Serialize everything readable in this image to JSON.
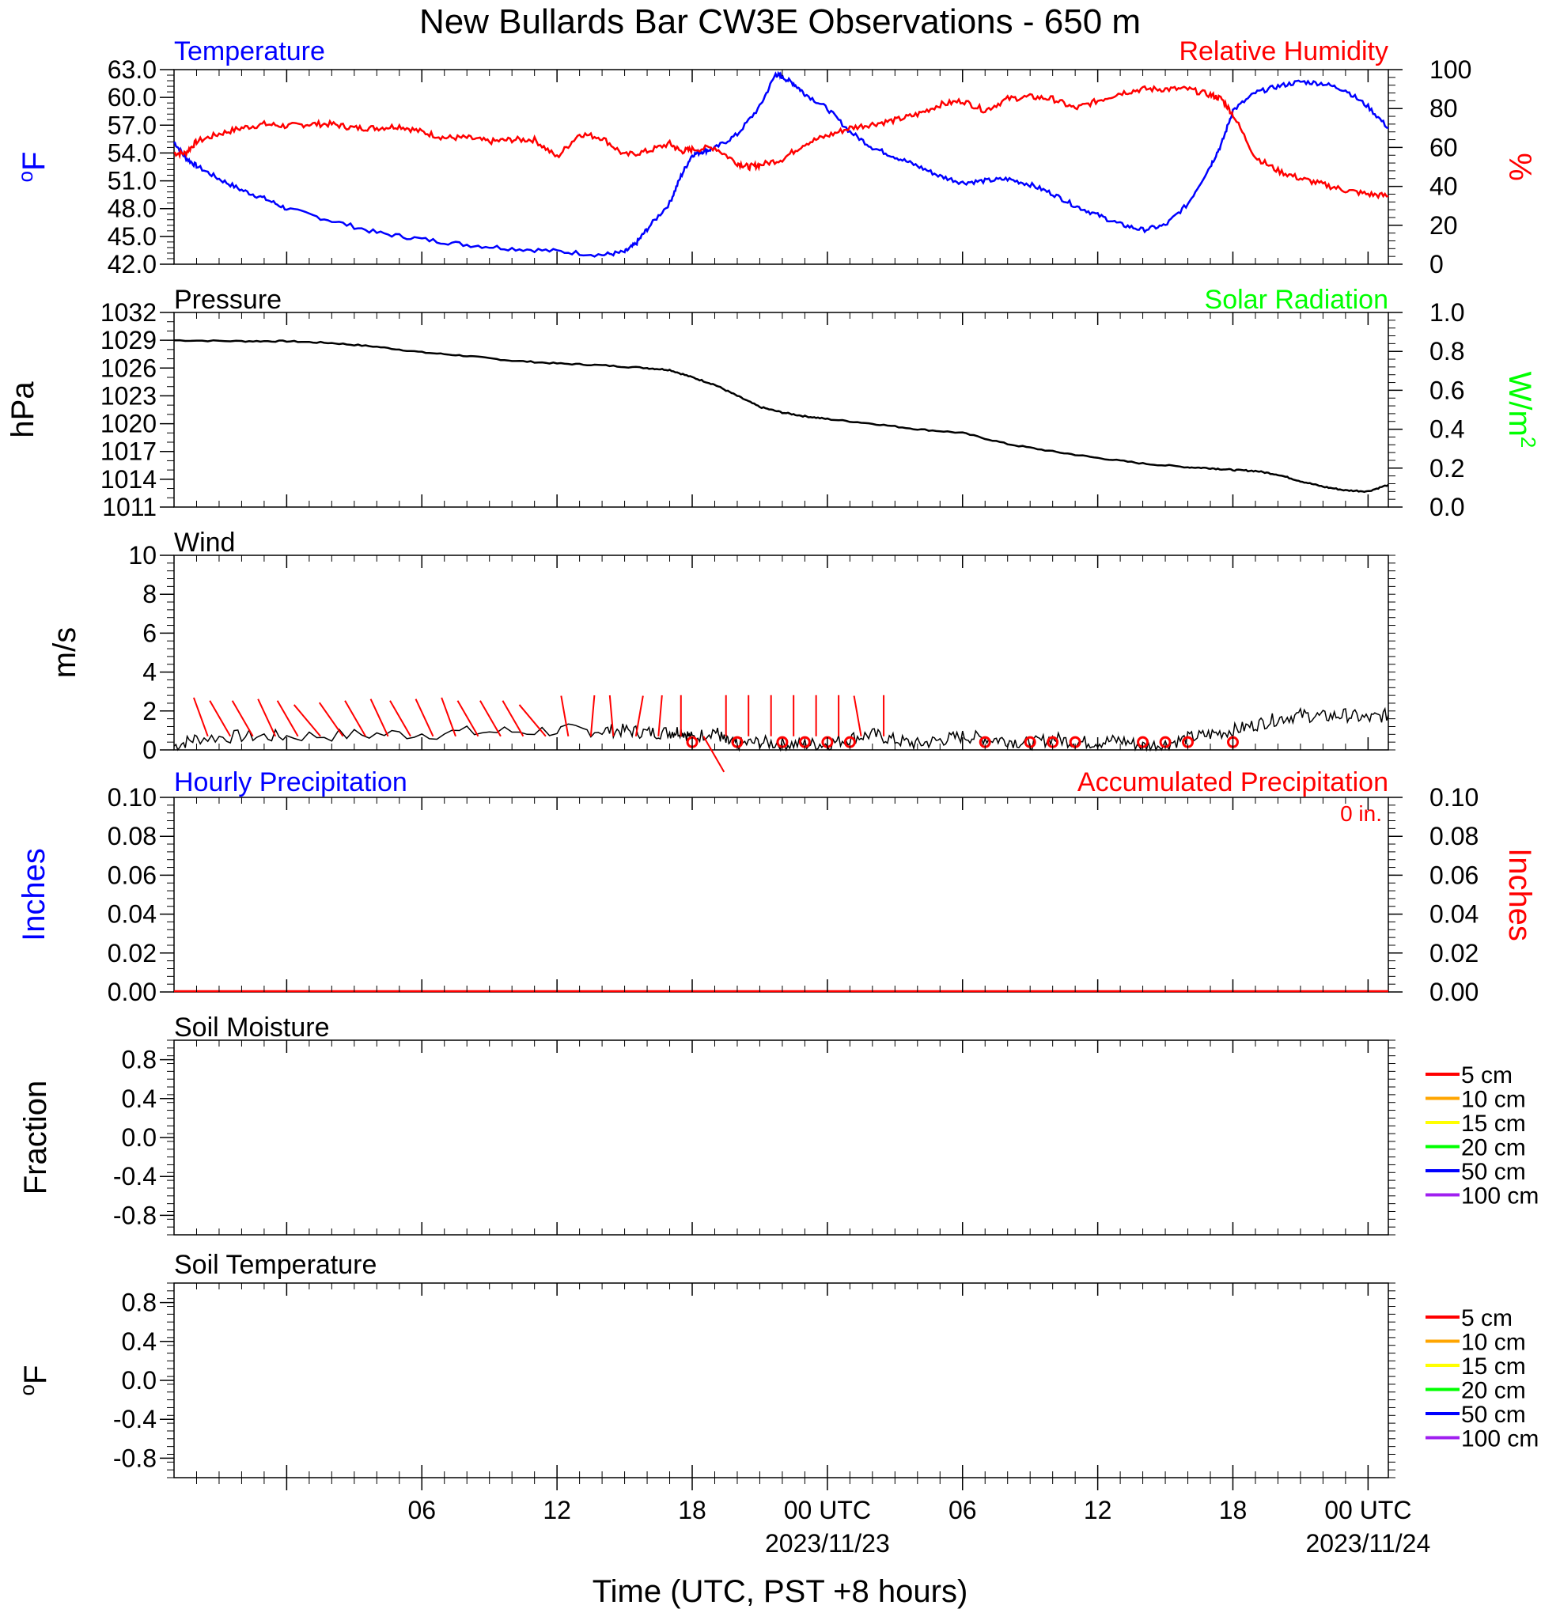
{
  "title": "New Bullards Bar CW3E Observations - 650 m",
  "xlabel": "Time (UTC, PST +8 hours)",
  "x_ticks": [
    {
      "hour": 6,
      "label": "06",
      "date": ""
    },
    {
      "hour": 12,
      "label": "12",
      "date": ""
    },
    {
      "hour": 18,
      "label": "18",
      "date": ""
    },
    {
      "hour": 24,
      "label": "00 UTC",
      "date": "2023/11/23"
    },
    {
      "hour": 30,
      "label": "06",
      "date": ""
    },
    {
      "hour": 36,
      "label": "12",
      "date": ""
    },
    {
      "hour": 42,
      "label": "18",
      "date": ""
    },
    {
      "hour": 48,
      "label": "00 UTC",
      "date": "2023/11/24"
    }
  ],
  "colors": {
    "temperature": "#0000ff",
    "humidity": "#ff0000",
    "pressure": "#000000",
    "solar": "#00ff00",
    "wind_barb": "#ff0000",
    "precip_hourly": "#0000ff",
    "precip_acc": "#ff0000"
  },
  "panels": {
    "temp": {
      "left_title": "Temperature",
      "right_title": "Relative Humidity",
      "left_unit": "oF",
      "right_unit": "%",
      "left_ticks": [
        "42.0",
        "45.0",
        "48.0",
        "51.0",
        "54.0",
        "57.0",
        "60.0",
        "63.0"
      ],
      "right_ticks": [
        "0",
        "20",
        "40",
        "60",
        "80",
        "100"
      ]
    },
    "pressure": {
      "left_title": "Pressure",
      "right_title": "Solar Radiation",
      "left_unit": "hPa",
      "right_unit": "W/m2",
      "left_ticks": [
        "1011",
        "1014",
        "1017",
        "1020",
        "1023",
        "1026",
        "1029",
        "1032"
      ],
      "right_ticks": [
        "0.0",
        "0.2",
        "0.4",
        "0.6",
        "0.8",
        "1.0"
      ]
    },
    "wind": {
      "left_title": "Wind",
      "left_unit": "m/s",
      "left_ticks": [
        "0",
        "2",
        "4",
        "6",
        "8",
        "10"
      ]
    },
    "precip": {
      "left_title": "Hourly Precipitation",
      "right_title": "Accumulated Precipitation",
      "left_unit": "Inches",
      "right_unit": "Inches",
      "acc_text": "0 in.",
      "left_ticks": [
        "0.00",
        "0.02",
        "0.04",
        "0.06",
        "0.08",
        "0.10"
      ],
      "right_ticks": [
        "0.00",
        "0.02",
        "0.04",
        "0.06",
        "0.08",
        "0.10"
      ]
    },
    "soilm": {
      "left_title": "Soil Moisture",
      "left_unit": "Fraction",
      "left_ticks": [
        "-0.8",
        "-0.4",
        "0.0",
        "0.4",
        "0.8"
      ]
    },
    "soilt": {
      "left_title": "Soil Temperature",
      "left_unit": "oF",
      "left_ticks": [
        "-0.8",
        "-0.4",
        "0.0",
        "0.4",
        "0.8"
      ]
    }
  },
  "soil_legend": [
    {
      "label": "5 cm",
      "color": "#ff0000"
    },
    {
      "label": "10 cm",
      "color": "#ffa500"
    },
    {
      "label": "15 cm",
      "color": "#ffff00"
    },
    {
      "label": "20 cm",
      "color": "#00ff00"
    },
    {
      "label": "50 cm",
      "color": "#0000ff"
    },
    {
      "label": "100 cm",
      "color": "#a020f0"
    }
  ],
  "chart_data": [
    {
      "type": "line",
      "x_unit": "hours since 2023-11-22 00 UTC",
      "xlim": [
        -5,
        48.9
      ],
      "title": "Temperature / Relative Humidity",
      "series": [
        {
          "name": "Temperature",
          "axis": "left",
          "ylim": [
            42,
            63
          ],
          "x": [
            -5,
            -4.5,
            -4,
            -3,
            -2,
            -1,
            0,
            2,
            4,
            6,
            8,
            10,
            12,
            14,
            15,
            15.5,
            16,
            17,
            17.5,
            18,
            18.5,
            19,
            20,
            21,
            21.7,
            22,
            22.5,
            23,
            24,
            25,
            26,
            27,
            28,
            29,
            30,
            31,
            32,
            33,
            34,
            35,
            36,
            37,
            38,
            39,
            40,
            41,
            41.5,
            42,
            43,
            44,
            45,
            46,
            47,
            48,
            48.9
          ],
          "values": [
            55.2,
            53.5,
            52.6,
            51.2,
            50.0,
            49.1,
            48.0,
            46.7,
            45.4,
            44.7,
            44.1,
            43.7,
            43.4,
            43.0,
            43.3,
            44.2,
            45.8,
            48.6,
            51.5,
            53.8,
            54.2,
            54.5,
            56.0,
            59.0,
            62.5,
            62.2,
            61.5,
            60.4,
            58.8,
            56.3,
            54.6,
            53.6,
            52.6,
            51.5,
            50.8,
            51.0,
            51.2,
            50.6,
            49.6,
            48.3,
            47.3,
            46.3,
            45.7,
            46.2,
            48.5,
            52.6,
            55.0,
            58.6,
            60.5,
            61.2,
            61.7,
            61.5,
            60.8,
            59.0,
            56.7
          ]
        },
        {
          "name": "Relative Humidity",
          "axis": "right",
          "ylim": [
            0,
            100
          ],
          "x": [
            -5,
            -4.5,
            -4,
            -3,
            -2,
            -1,
            0,
            1,
            2,
            3,
            4,
            5,
            6,
            7,
            8,
            9,
            10,
            11,
            12,
            13,
            14,
            15,
            16,
            17,
            17.5,
            18,
            19,
            20,
            20.5,
            21,
            22,
            23,
            24,
            25,
            26,
            27,
            28,
            29,
            30,
            31,
            32,
            33,
            34,
            35,
            36,
            37,
            38,
            39,
            40,
            41,
            41.5,
            42,
            43,
            44,
            45,
            46,
            47,
            48,
            48.9
          ],
          "values": [
            57,
            57,
            63,
            67,
            70,
            72,
            71,
            72,
            72,
            70,
            70,
            71,
            68,
            65,
            65,
            63,
            64,
            64,
            55,
            67,
            65,
            56,
            58,
            62,
            58,
            59,
            60,
            52,
            50,
            51,
            54,
            62,
            66,
            70,
            72,
            74,
            77,
            82,
            84,
            79,
            85,
            86,
            85,
            80,
            84,
            88,
            90,
            90,
            90,
            87,
            85,
            77,
            55,
            48,
            44,
            41,
            38,
            36,
            35
          ]
        }
      ]
    },
    {
      "type": "line",
      "x_unit": "hours since 2023-11-22 00 UTC",
      "xlim": [
        -5,
        48.9
      ],
      "title": "Pressure / Solar Radiation",
      "series": [
        {
          "name": "Pressure",
          "axis": "left",
          "ylim": [
            1011,
            1032
          ],
          "x": [
            -5,
            -2,
            0,
            2,
            4,
            6,
            8,
            10,
            12,
            14,
            16,
            17,
            18,
            19,
            20,
            21,
            22,
            23,
            24,
            26,
            28,
            30,
            32,
            34,
            36,
            38,
            40,
            41,
            42,
            43,
            44,
            45,
            46,
            47,
            48,
            48.9
          ],
          "values": [
            1029.0,
            1028.9,
            1028.9,
            1028.7,
            1028.3,
            1027.7,
            1027.3,
            1026.8,
            1026.5,
            1026.3,
            1026.0,
            1025.8,
            1025.0,
            1024.2,
            1023.0,
            1021.8,
            1021.2,
            1020.8,
            1020.5,
            1020.0,
            1019.4,
            1019.0,
            1017.8,
            1017.0,
            1016.3,
            1015.7,
            1015.3,
            1015.2,
            1015.0,
            1014.9,
            1014.5,
            1013.8,
            1013.2,
            1012.8,
            1012.7,
            1013.4
          ]
        }
      ]
    },
    {
      "type": "line",
      "title": "Wind",
      "x_unit": "hours since 2023-11-22 00 UTC",
      "xlim": [
        -5,
        48.9
      ],
      "ylim": [
        0,
        10
      ],
      "series": [
        {
          "name": "Wind speed",
          "x": [
            -5,
            -4,
            -2,
            0,
            4,
            8,
            12,
            14,
            15,
            16,
            17,
            17.5,
            18,
            19,
            19.5,
            20,
            21,
            22,
            23,
            24,
            25,
            26,
            27,
            28,
            29,
            30,
            31,
            32,
            33,
            34,
            35,
            36,
            37,
            38,
            39,
            40,
            41,
            42,
            43,
            44,
            45,
            46,
            47,
            48,
            48.9
          ],
          "values": [
            0.2,
            0.6,
            0.7,
            0.7,
            0.8,
            0.9,
            1.0,
            1.0,
            1.0,
            0.9,
            0.9,
            1.0,
            0.6,
            1.0,
            0.4,
            0.3,
            0.4,
            0.3,
            0.3,
            0.3,
            0.6,
            0.8,
            0.5,
            0.3,
            0.5,
            0.7,
            0.6,
            0.5,
            0.3,
            0.6,
            0.4,
            0.4,
            0.5,
            0.2,
            0.3,
            0.6,
            0.8,
            1.0,
            1.3,
            1.6,
            1.8,
            1.7,
            1.8,
            1.6,
            1.8
          ]
        },
        {
          "name": "Wind barbs",
          "type": "barbs",
          "x": [
            -3.5,
            -2.5,
            -1.5,
            -0.5,
            0.5,
            1.5,
            2.5,
            3.5,
            4.5,
            5.5,
            6.5,
            7.5,
            8.5,
            9.5,
            10.5,
            11.5,
            12.5,
            13.5,
            14.5,
            15.5,
            16.5,
            17.5,
            18.5,
            19.5,
            20.5,
            21.5,
            22.5,
            23.5,
            24.5,
            25.5,
            26.5
          ],
          "direction_deg": [
            340,
            330,
            330,
            335,
            330,
            320,
            325,
            330,
            335,
            330,
            335,
            340,
            330,
            330,
            330,
            320,
            350,
            5,
            355,
            10,
            5,
            0,
            150,
            0,
            0,
            0,
            0,
            0,
            0,
            350,
            0
          ]
        }
      ]
    },
    {
      "type": "line",
      "title": "Hourly Precipitation / Accumulated Precipitation",
      "x_unit": "hours since 2023-11-22 00 UTC",
      "xlim": [
        -5,
        48.9
      ],
      "series": [
        {
          "name": "Hourly Precipitation",
          "axis": "left",
          "ylim": [
            0,
            0.1
          ],
          "x": [
            -5,
            48.9
          ],
          "values": [
            0,
            0
          ]
        },
        {
          "name": "Accumulated Precipitation",
          "axis": "right",
          "ylim": [
            0,
            0.1
          ],
          "x": [
            -5,
            48.9
          ],
          "values": [
            0,
            0
          ]
        }
      ]
    },
    {
      "type": "line",
      "title": "Soil Moisture",
      "ylim": [
        -1,
        1
      ],
      "series": []
    },
    {
      "type": "line",
      "title": "Soil Temperature",
      "ylim": [
        -1,
        1
      ],
      "series": []
    }
  ]
}
